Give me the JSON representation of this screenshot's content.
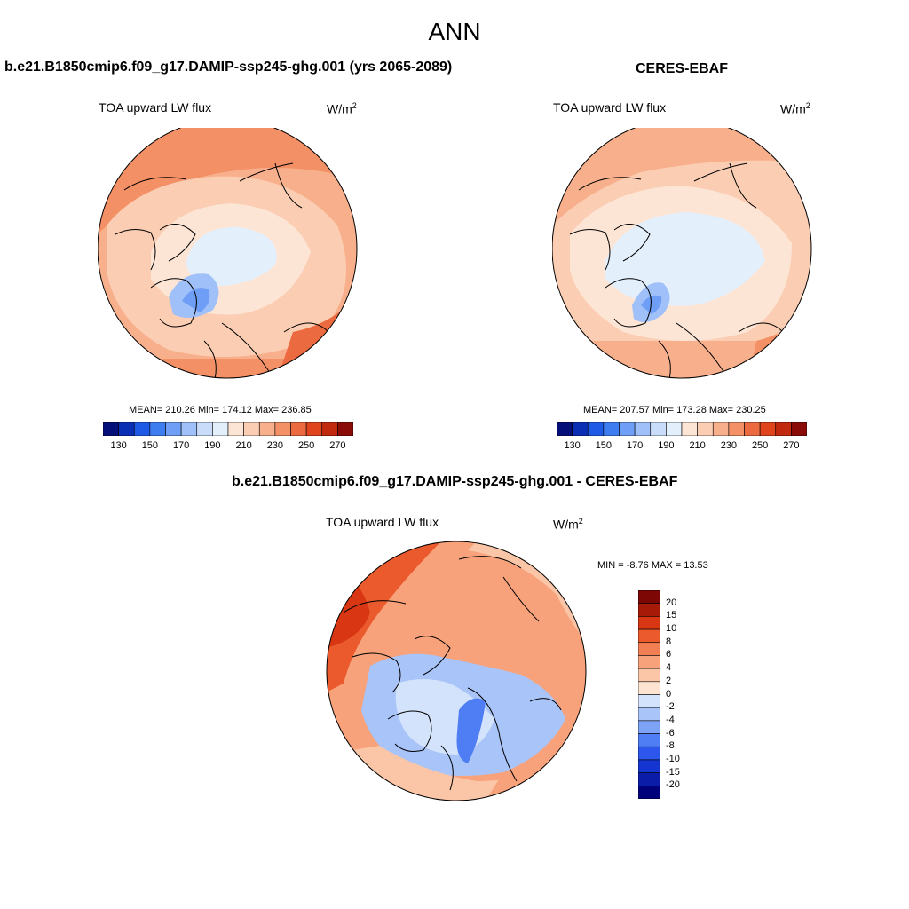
{
  "figure": {
    "title": "ANN",
    "palette_abs": [
      "#050f78",
      "#0a2fb4",
      "#1f5ae6",
      "#3d7df0",
      "#6e9ef5",
      "#9fc0f8",
      "#c9dcfa",
      "#e4effc",
      "#fde5d6",
      "#fbcdb3",
      "#f8b08c",
      "#f39066",
      "#ec6a3f",
      "#e0441d",
      "#c12a0f",
      "#8a0c08"
    ],
    "palette_diff": [
      "#00007a",
      "#0b1ca8",
      "#1435d0",
      "#2c56ec",
      "#4f7df3",
      "#7ca3f6",
      "#a9c4f8",
      "#d3e3fb",
      "#fde3d2",
      "#fbc6a7",
      "#f8a27b",
      "#f27f53",
      "#ea5a2c",
      "#d93714",
      "#a71a08",
      "#7c0705"
    ]
  },
  "panels": {
    "model": {
      "title": "b.e21.B1850cmip6.f09_g17.DAMIP-ssp245-ghg.001 (yrs 2065-2089)",
      "variable": "TOA upward LW flux",
      "units_base": "W/m",
      "units_exp": "2",
      "stats": "MEAN= 210.26  Min= 174.12  Max= 236.85",
      "mean": 210.26,
      "min": 174.12,
      "max": 236.85
    },
    "obs": {
      "title": "CERES-EBAF",
      "variable": "TOA upward LW flux",
      "units_base": "W/m",
      "units_exp": "2",
      "stats": "MEAN= 207.57  Min= 173.28  Max= 230.25",
      "mean": 207.57,
      "min": 173.28,
      "max": 230.25
    },
    "diff": {
      "title": "b.e21.B1850cmip6.f09_g17.DAMIP-ssp245-ghg.001 - CERES-EBAF",
      "variable": "TOA upward LW flux",
      "units_base": "W/m",
      "units_exp": "2",
      "stats": "MIN =  -8.76 MAX =  13.53",
      "min": -8.76,
      "max": 13.53
    }
  },
  "colorbars": {
    "abs_ticks": [
      "130",
      "150",
      "170",
      "190",
      "210",
      "230",
      "250",
      "270"
    ],
    "diff_ticks": [
      "20",
      "15",
      "10",
      "8",
      "6",
      "4",
      "2",
      "0",
      "-2",
      "-4",
      "-6",
      "-8",
      "-10",
      "-15",
      "-20"
    ]
  }
}
